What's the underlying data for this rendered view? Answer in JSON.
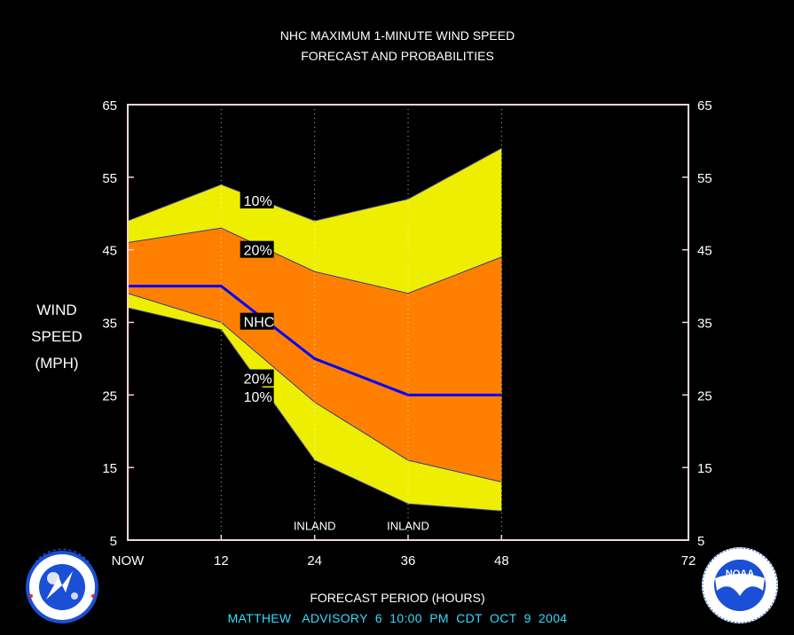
{
  "chart_data": {
    "type": "area",
    "title": "NHC MAXIMUM 1-MINUTE WIND SPEED",
    "subtitle": "FORECAST AND PROBABILITIES",
    "xlabel": "FORECAST PERIOD (HOURS)",
    "ylabel": [
      "WIND",
      "SPEED",
      "(MPH)"
    ],
    "x": [
      0,
      12,
      24,
      36,
      48
    ],
    "xlim": [
      0,
      72
    ],
    "ylim": [
      5,
      65
    ],
    "x_ticks": [
      {
        "value": 0,
        "label": "NOW"
      },
      {
        "value": 12,
        "label": "12"
      },
      {
        "value": 24,
        "label": "24"
      },
      {
        "value": 36,
        "label": "36"
      },
      {
        "value": 48,
        "label": "48"
      },
      {
        "value": 72,
        "label": "72"
      }
    ],
    "y_ticks": [
      "65",
      "55",
      "45",
      "35",
      "25",
      "15",
      "5"
    ],
    "series": [
      {
        "name": "10%",
        "role": "upper",
        "values": [
          49,
          54,
          49,
          52,
          59
        ],
        "color": "#eeee00"
      },
      {
        "name": "20%",
        "role": "upper",
        "values": [
          46,
          48,
          42,
          39,
          44
        ],
        "color": "#ff8000"
      },
      {
        "name": "NHC",
        "role": "forecast",
        "values": [
          40,
          40,
          30,
          25,
          25
        ],
        "color": "#0000ff"
      },
      {
        "name": "20%",
        "role": "lower",
        "values": [
          39,
          35,
          24,
          16,
          13
        ],
        "color": "#ff8000"
      },
      {
        "name": "10%",
        "role": "lower",
        "values": [
          37,
          34,
          16,
          10,
          9
        ],
        "color": "#eeee00"
      }
    ],
    "band_labels": [
      {
        "text": "10%",
        "x": 15,
        "y": 51.8
      },
      {
        "text": "20%",
        "x": 15,
        "y": 45
      },
      {
        "text": "NHC",
        "x": 15,
        "y": 35.1
      },
      {
        "text": "20%",
        "x": 15,
        "y": 27.3
      },
      {
        "text": "10%",
        "x": 15,
        "y": 24.8
      }
    ],
    "annotations": [
      {
        "text": "INLAND",
        "x": 24,
        "y": 7
      },
      {
        "text": "INLAND",
        "x": 36,
        "y": 7
      }
    ],
    "grid": "vertical dotted at 12, 24, 36, 48"
  },
  "footer": {
    "advisory": "MATTHEW   ADVISORY  6  10:00  PM  CDT  OCT  9  2004"
  },
  "logos": {
    "left": {
      "icon": "nws-logo",
      "text": "NATIONAL WEATHER SERVICE"
    },
    "right": {
      "icon": "noaa-logo",
      "text": "NOAA"
    }
  },
  "colors": {
    "background": "#000000",
    "frame": "#f2d6d6",
    "band10": "#eeee00",
    "band20": "#ff8000",
    "nhc_line": "#0000ff",
    "advisory_text": "#33ddff"
  }
}
